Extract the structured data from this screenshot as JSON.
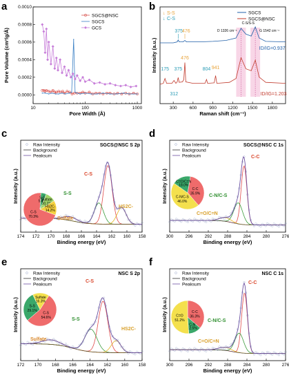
{
  "chart_data": [
    {
      "panel": "a",
      "type": "line",
      "xscale": "log",
      "xlim": [
        10,
        1200
      ],
      "ylim": [
        -0.0001,
        0.001
      ],
      "xticks": [
        10,
        100,
        1000
      ],
      "yticks": [
        0.0,
        0.0002,
        0.0004,
        0.0006,
        0.0008,
        0.001
      ],
      "ytick_labels": [
        "0.0000",
        "0.0002",
        "0.0004",
        "0.0006",
        "0.0008",
        "0.0010"
      ],
      "xlabel": "Pore Width (Å)",
      "ylabel": "Pore Volume (cm³/g/Å)",
      "legend_position": "top-right",
      "series": [
        {
          "name": "SGCS@NSC",
          "color": "#d9534f",
          "x": [
            15,
            16,
            17,
            18,
            20,
            22,
            24,
            26,
            28,
            31,
            34,
            37,
            40,
            45,
            50,
            56,
            62,
            70,
            80,
            90,
            100,
            120,
            140,
            160,
            190,
            220,
            260,
            300,
            360,
            420,
            500,
            600,
            700,
            850,
            1000
          ],
          "y": [
            5e-05,
            5e-05,
            4e-05,
            5e-05,
            4e-05,
            3e-05,
            5e-05,
            3e-05,
            3e-05,
            4e-05,
            3e-05,
            4e-05,
            2e-05,
            4e-05,
            3e-05,
            1e-05,
            2e-05,
            2e-05,
            2e-05,
            3e-05,
            2e-05,
            3e-05,
            1e-05,
            2e-05,
            2e-05,
            1e-05,
            2e-05,
            2e-05,
            1e-05,
            2e-05,
            1e-05,
            2e-05,
            1e-05,
            2e-05,
            1e-05
          ]
        },
        {
          "name": "SGCS",
          "color": "#3a7fc4",
          "x": [
            15,
            17,
            20,
            23,
            27,
            31,
            36,
            42,
            50,
            55,
            60,
            64,
            70,
            80,
            100,
            130,
            170,
            220,
            300,
            400,
            550,
            700,
            1000
          ],
          "y": [
            2e-05,
            2e-05,
            1e-05,
            2e-05,
            1e-05,
            1e-05,
            2e-05,
            1e-05,
            2e-05,
            3e-05,
            0.00063,
            3e-05,
            2e-05,
            1e-05,
            2e-05,
            1e-05,
            1e-05,
            2e-05,
            1e-05,
            1e-05,
            2e-05,
            1e-05,
            1e-05
          ]
        },
        {
          "name": "GCS",
          "color": "#c77dd9",
          "x": [
            15,
            16,
            17,
            18,
            19,
            20,
            22,
            24,
            26,
            28,
            30,
            33,
            36,
            40,
            44,
            48,
            53,
            58,
            64,
            70,
            80,
            90,
            100,
            120,
            150,
            190,
            240,
            300,
            380,
            480,
            600,
            750,
            950
          ],
          "y": [
            0.0008,
            0.00072,
            0.00048,
            0.00075,
            0.0004,
            0.0006,
            0.00035,
            0.00055,
            0.0003,
            0.00042,
            0.00028,
            0.0004,
            0.00025,
            0.00032,
            0.00022,
            0.00028,
            0.0002,
            0.00024,
            0.00018,
            0.00022,
            0.00016,
            0.0002,
            0.00015,
            0.00017,
            0.00013,
            0.00014,
            0.00012,
            0.00013,
            0.00011,
            0.0001,
            0.00011,
            9e-05,
            0.0001
          ]
        }
      ]
    },
    {
      "panel": "b",
      "type": "line",
      "xlim": [
        100,
        2000
      ],
      "xticks": [
        300,
        600,
        900,
        1200,
        1500,
        1800
      ],
      "xlabel": "Raman shift (cm⁻¹)",
      "ylabel": "Intensity (a.u.)",
      "legend_position": "top-right",
      "legend_symbols": [
        {
          "label": "S-S",
          "color": "#e8a33a"
        },
        {
          "label": "C-S",
          "color": "#2a9bb5"
        }
      ],
      "series": [
        {
          "name": "SGCS",
          "color": "#1f5fa8",
          "offset": 1.0,
          "x": [
            100,
            200,
            300,
            360,
            375,
            390,
            450,
            476,
            500,
            700,
            900,
            1100,
            1250,
            1326,
            1400,
            1480,
            1542,
            1600,
            1700,
            2000
          ],
          "y": [
            0.0,
            0.0,
            0.0,
            0.02,
            0.06,
            0.02,
            0.02,
            0.05,
            0.02,
            0.02,
            0.03,
            0.05,
            0.1,
            0.3,
            0.18,
            0.14,
            0.33,
            0.1,
            0.03,
            0.02
          ]
        },
        {
          "name": "SGCS@NSC",
          "color": "#c0392b",
          "offset": 0.0,
          "x": [
            100,
            150,
            175,
            200,
            280,
            312,
            340,
            360,
            375,
            390,
            440,
            460,
            476,
            490,
            600,
            780,
            804,
            820,
            920,
            941,
            960,
            1150,
            1250,
            1326,
            1400,
            1480,
            1542,
            1600,
            1700,
            2000
          ],
          "y": [
            0.0,
            0.02,
            0.12,
            0.02,
            0.02,
            0.08,
            0.02,
            0.05,
            0.14,
            0.04,
            0.05,
            0.1,
            0.45,
            0.05,
            0.02,
            0.02,
            0.1,
            0.02,
            0.03,
            0.18,
            0.02,
            0.04,
            0.12,
            0.55,
            0.32,
            0.28,
            0.5,
            0.15,
            0.04,
            0.02
          ]
        }
      ],
      "annotations": {
        "peaks_sgcs": [
          "375",
          "476"
        ],
        "peaks_nsc": [
          "175",
          "312",
          "375",
          "476",
          "804",
          "941"
        ],
        "d_band": "D 1326 cm⁻¹",
        "g_band": "G 1542 cm⁻¹",
        "csiss": "C-S/S-S",
        "ratio_sgcs": "ID/IG=0.937",
        "ratio_nsc": "ID/IG=1.203"
      }
    },
    {
      "panel": "c",
      "type": "line",
      "title": "SGCS@NSC  S 2p",
      "xlim": [
        174,
        158
      ],
      "xticks": [
        174,
        172,
        170,
        168,
        166,
        164,
        162,
        160,
        158
      ],
      "xlabel": "Binding energy (eV)",
      "ylabel": "Intensity (a.u.)",
      "legend": [
        "Raw Intensity",
        "Background",
        "Peaksum"
      ],
      "peak_labels": [
        "C-S",
        "S-S",
        "Sulfate",
        "HS2C-"
      ],
      "pie": [
        {
          "label": "C-S",
          "value": 70.3
        },
        {
          "label": "S-S",
          "value": 5.4
        },
        {
          "label": "Sulfate",
          "value": 10.1
        },
        {
          "label": "HS2C-",
          "value": 14.2
        }
      ]
    },
    {
      "panel": "d",
      "type": "line",
      "title": "SGCS@NSC  C 1s",
      "xlim": [
        300,
        276
      ],
      "xticks": [
        300,
        296,
        292,
        288,
        284,
        280,
        276
      ],
      "xlabel": "Binding energy (eV)",
      "ylabel": "Intensity (a.u.)",
      "legend": [
        "Raw Intensity",
        "Background",
        "Peaksum"
      ],
      "peak_labels": [
        "C-C",
        "C-N/C-S",
        "C=O/C=N"
      ],
      "pie": [
        {
          "label": "C-C",
          "value": 35.9
        },
        {
          "label": "C-N/C-S",
          "value": 46.0
        },
        {
          "label": "C=O/C=N",
          "value": 18.0
        }
      ]
    },
    {
      "panel": "e",
      "type": "line",
      "title": "NSC  S 2p",
      "xlim": [
        172,
        158
      ],
      "xticks": [
        172,
        170,
        168,
        166,
        164,
        162,
        160,
        158
      ],
      "xlabel": "Binding energy (eV)",
      "ylabel": "Intensity (a.u.)",
      "legend": [
        "Raw Intensity",
        "Background",
        "Peaksum"
      ],
      "peak_labels": [
        "C-S",
        "S-S",
        "HS2C-",
        "Sulfate"
      ],
      "pie": [
        {
          "label": "C-S",
          "value": 54.6
        },
        {
          "label": "S-S",
          "value": 29.1
        },
        {
          "label": "Sulfate",
          "value": 16.3
        }
      ]
    },
    {
      "panel": "f",
      "type": "line",
      "title": "NSC  C 1s",
      "xlim": [
        300,
        276
      ],
      "xticks": [
        300,
        296,
        292,
        288,
        284,
        280,
        276
      ],
      "xlabel": "Binding energy (eV)",
      "ylabel": "Intensity (a.u.)",
      "legend": [
        "Raw Intensity",
        "Background",
        "Peaksum"
      ],
      "peak_labels": [
        "C-C",
        "C-N/C-S",
        "C=O/C=N"
      ],
      "pie": [
        {
          "label": "C-C",
          "value": 36.3
        },
        {
          "label": "C-N",
          "value": 12.5
        },
        {
          "label": "C=O",
          "value": 51.2
        }
      ]
    }
  ]
}
